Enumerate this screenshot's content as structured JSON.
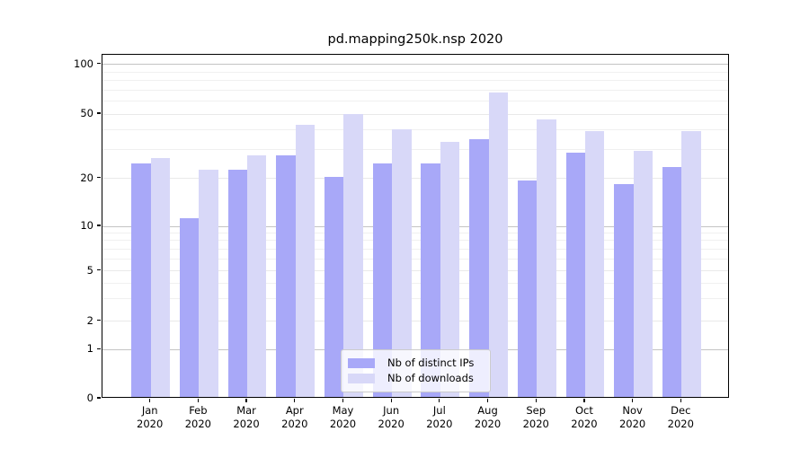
{
  "chart_data": {
    "type": "bar",
    "title": "pd.mapping250k.nsp 2020",
    "categories": [
      "Jan 2020",
      "Feb 2020",
      "Mar 2020",
      "Apr 2020",
      "May 2020",
      "Jun 2020",
      "Jul 2020",
      "Aug 2020",
      "Sep 2020",
      "Oct 2020",
      "Nov 2020",
      "Dec 2020"
    ],
    "series": [
      {
        "name": "Nb of distinct IPs",
        "color": "#a8a8f8",
        "values": [
          24,
          11,
          22,
          27,
          20,
          24,
          24,
          34,
          19,
          28,
          18,
          23
        ]
      },
      {
        "name": "Nb of downloads",
        "color": "#d8d8f8",
        "values": [
          26,
          22,
          27,
          42,
          49,
          39,
          33,
          66,
          45,
          38,
          29,
          38
        ]
      }
    ],
    "xlabel": "",
    "ylabel": "",
    "yscale": "symlog",
    "yticks": [
      100,
      50,
      20,
      10,
      5,
      2,
      1,
      0
    ],
    "ylim": [
      0,
      115
    ],
    "grid": true,
    "legend_position": "lower center"
  }
}
